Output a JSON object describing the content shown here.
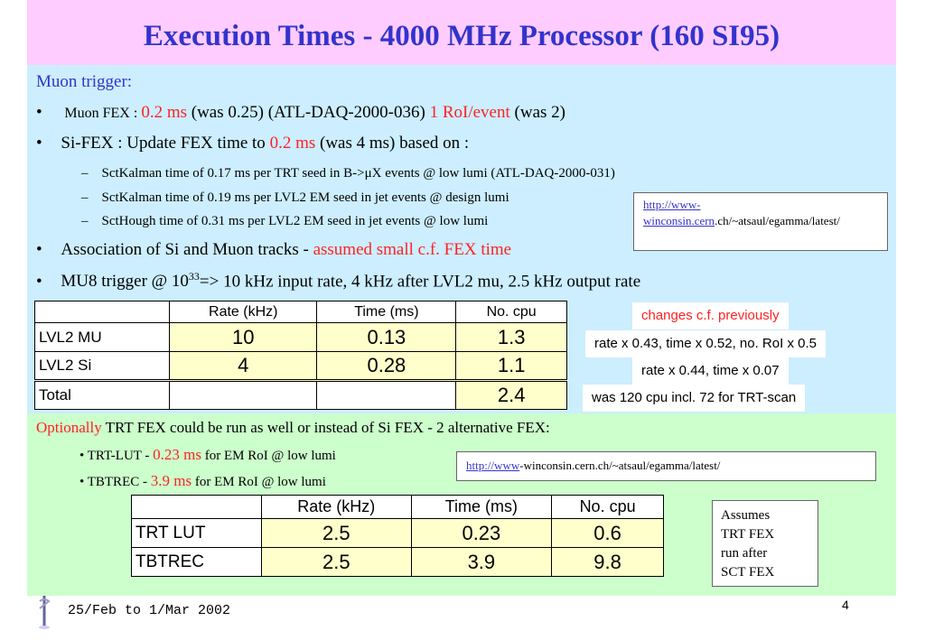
{
  "title": "Execution Times  - 4000 MHz Processor (160 SI95)",
  "muon_heading": "Muon trigger:",
  "bullets": {
    "muon_fex": {
      "prefix": "Muon FEX : ",
      "time": "0.2 ms",
      "mid": " (was 0.25) (ATL-DAQ-2000-036) ",
      "roi": "1 RoI/event",
      "suffix": " (was 2)"
    },
    "si_fex": {
      "prefix": "Si-FEX : Update FEX time to ",
      "time": "0.2 ms",
      "suffix": " (was 4 ms) based on :"
    },
    "sub1": "SctKalman time of 0.17 ms per TRT seed in B->μX events @ low lumi (ATL-DAQ-2000-031)",
    "sub2": "SctKalman time of 0.19 ms per LVL2 EM seed in jet events @ design lumi",
    "sub3": "SctHough time of 0.31 ms per LVL2 EM seed in jet events @ low lumi",
    "assoc": {
      "prefix": "Association of Si and Muon tracks - ",
      "highlight": "assumed small c.f. FEX time"
    },
    "mu8": {
      "prefix": "MU8 trigger @ 10",
      "sup": "33",
      "suffix": "=> 10 kHz input rate, 4 kHz after LVL2 mu, 2.5 kHz output rate"
    }
  },
  "link_box_1": {
    "link": "http://www-winconsin.cern",
    "rest": ".ch/~atsaul/egamma/latest/"
  },
  "table1": {
    "headers": [
      "",
      "Rate (kHz)",
      "Time (ms)",
      "No. cpu"
    ],
    "rows": [
      {
        "label": "LVL2 MU",
        "rate": "10",
        "time": "0.13",
        "cpu": "1.3"
      },
      {
        "label": "LVL2 Si",
        "rate": "4",
        "time": "0.28",
        "cpu": "1.1"
      },
      {
        "label": "Total",
        "rate": "",
        "time": "",
        "cpu": "2.4"
      }
    ]
  },
  "notes": {
    "changes": "changes c.f. previously",
    "note1": "rate x 0.43,  time x 0.52, no. RoI x 0.5",
    "note2": "rate x 0.44, time x 0.07",
    "note3": "was 120 cpu incl. 72 for TRT-scan"
  },
  "optionally": {
    "prefix": "Optionally",
    "rest": " TRT FEX could be run as well or instead of Si FEX - 2 alternative FEX:"
  },
  "trt_lut": {
    "prefix": "• TRT-LUT - ",
    "time": "0.23 ms",
    "suffix": " for EM RoI @ low lumi"
  },
  "tbtrec": {
    "prefix": "• TBTREC - ",
    "time": "3.9 ms",
    "suffix": " for EM RoI @ low lumi"
  },
  "link_box_2": {
    "link": "http://www",
    "rest": "-winconsin.cern.ch/~atsaul/egamma/latest/"
  },
  "table2": {
    "headers": [
      "",
      "Rate (kHz)",
      "Time (ms)",
      "No. cpu"
    ],
    "rows": [
      {
        "label": "TRT LUT",
        "rate": "2.5",
        "time": "0.23",
        "cpu": "0.6"
      },
      {
        "label": "TBTREC",
        "rate": "2.5",
        "time": "3.9",
        "cpu": "9.8"
      }
    ]
  },
  "assumes": {
    "l1": "Assumes",
    "l2": "TRT FEX",
    "l3": "run after",
    "l4": "SCT  FEX"
  },
  "footer": {
    "date": "25/Feb to 1/Mar 2002",
    "page": "4"
  }
}
